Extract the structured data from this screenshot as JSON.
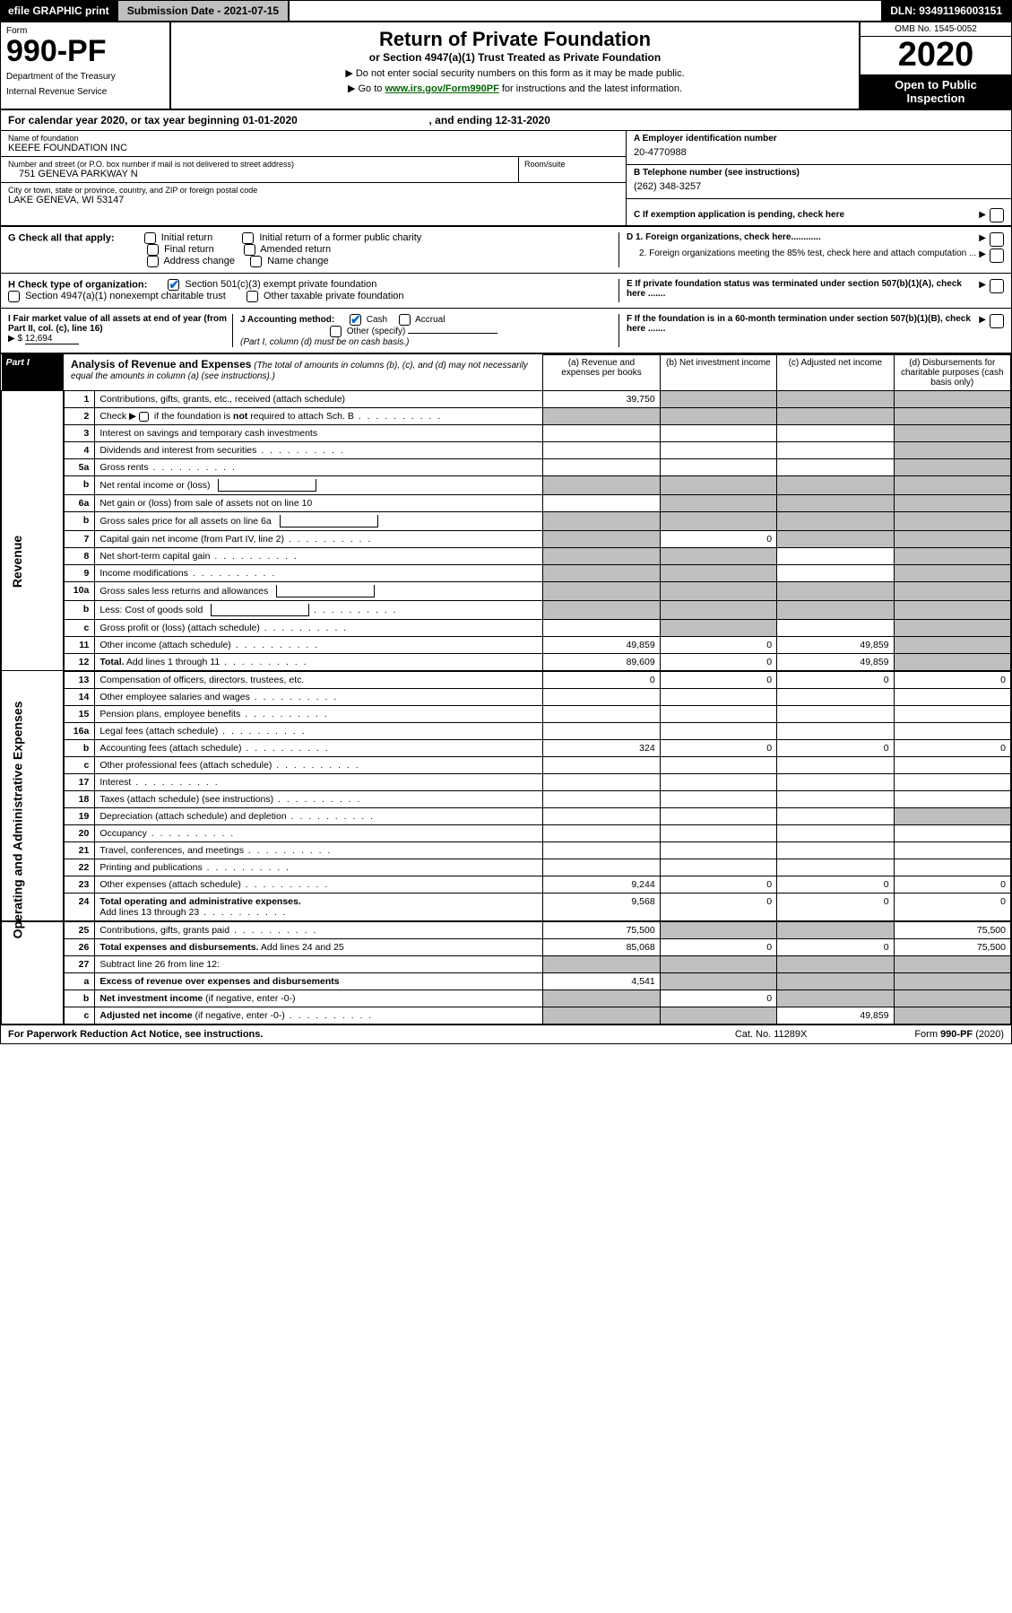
{
  "topbar": {
    "efile": "efile GRAPHIC print",
    "submission_label": "Submission Date - 2021-07-15",
    "dln": "DLN: 93491196003151"
  },
  "title_block": {
    "form_label": "Form",
    "form_number": "990-PF",
    "dept1": "Department of the Treasury",
    "dept2": "Internal Revenue Service",
    "main_title": "Return of Private Foundation",
    "subtitle": "or Section 4947(a)(1) Trust Treated as Private Foundation",
    "note1": "▶ Do not enter social security numbers on this form as it may be made public.",
    "note2_pre": "▶ Go to ",
    "note2_link": "www.irs.gov/Form990PF",
    "note2_post": " for instructions and the latest information.",
    "omb": "OMB No. 1545-0052",
    "year": "2020",
    "open_public": "Open to Public Inspection"
  },
  "cal_year": {
    "text_a": "For calendar year 2020, or tax year beginning 01-01-2020",
    "text_b": ", and ending 12-31-2020"
  },
  "entity": {
    "name_label": "Name of foundation",
    "name": "KEEFE FOUNDATION INC",
    "addr_label": "Number and street (or P.O. box number if mail is not delivered to street address)",
    "addr": "751 GENEVA PARKWAY N",
    "room_label": "Room/suite",
    "city_label": "City or town, state or province, country, and ZIP or foreign postal code",
    "city": "LAKE GENEVA, WI  53147",
    "a_label": "A Employer identification number",
    "a_val": "20-4770988",
    "b_label": "B Telephone number (see instructions)",
    "b_val": "(262) 348-3257",
    "c_label": "C If exemption application is pending, check here"
  },
  "checks": {
    "g_label": "G Check all that apply:",
    "g_items": [
      "Initial return",
      "Initial return of a former public charity",
      "Final return",
      "Amended return",
      "Address change",
      "Name change"
    ],
    "h_label": "H Check type of organization:",
    "h1": "Section 501(c)(3) exempt private foundation",
    "h2": "Section 4947(a)(1) nonexempt charitable trust",
    "h3": "Other taxable private foundation",
    "i_label": "I Fair market value of all assets at end of year (from Part II, col. (c), line 16)",
    "i_val": "12,694",
    "j_label": "J Accounting method:",
    "j1": "Cash",
    "j2": "Accrual",
    "j3": "Other (specify)",
    "j_note": "(Part I, column (d) must be on cash basis.)",
    "d1": "D 1. Foreign organizations, check here............",
    "d2": "2. Foreign organizations meeting the 85% test, check here and attach computation ...",
    "e": "E  If private foundation status was terminated under section 507(b)(1)(A), check here .......",
    "f": "F  If the foundation is in a 60-month termination under section 507(b)(1)(B), check here .......",
    "i_prefix": "▶ $"
  },
  "part1": {
    "tag": "Part I",
    "title": "Analysis of Revenue and Expenses",
    "title_note": " (The total of amounts in columns (b), (c), and (d) may not necessarily equal the amounts in column (a) (see instructions).)",
    "col_a": "(a)   Revenue and expenses per books",
    "col_b": "(b)   Net investment income",
    "col_c": "(c)   Adjusted net income",
    "col_d": "(d)   Disbursements for charitable purposes (cash basis only)"
  },
  "sides": {
    "revenue": "Revenue",
    "expenses": "Operating and Administrative Expenses"
  },
  "rows": [
    {
      "n": "1",
      "desc": "Contributions, gifts, grants, etc., received (attach schedule)",
      "a": "39,750",
      "b": "",
      "c": "",
      "d": "",
      "shaded": [
        "b",
        "c",
        "d"
      ]
    },
    {
      "n": "2",
      "desc": "Check ▶ ☐ if the foundation is not required to attach Sch. B",
      "a": "",
      "b": "",
      "c": "",
      "d": "",
      "shaded": [
        "a",
        "b",
        "c",
        "d"
      ],
      "dots": true
    },
    {
      "n": "3",
      "desc": "Interest on savings and temporary cash investments",
      "a": "",
      "b": "",
      "c": "",
      "d": "",
      "shaded": [
        "d"
      ]
    },
    {
      "n": "4",
      "desc": "Dividends and interest from securities",
      "a": "",
      "b": "",
      "c": "",
      "d": "",
      "shaded": [
        "d"
      ],
      "dots": true
    },
    {
      "n": "5a",
      "desc": "Gross rents",
      "a": "",
      "b": "",
      "c": "",
      "d": "",
      "shaded": [
        "d"
      ],
      "dots": true
    },
    {
      "n": "b",
      "desc": "Net rental income or (loss)",
      "a": "",
      "b": "",
      "c": "",
      "d": "",
      "shaded": [
        "a",
        "b",
        "c",
        "d"
      ],
      "inline_box": true
    },
    {
      "n": "6a",
      "desc": "Net gain or (loss) from sale of assets not on line 10",
      "a": "",
      "b": "",
      "c": "",
      "d": "",
      "shaded": [
        "b",
        "c",
        "d"
      ]
    },
    {
      "n": "b",
      "desc": "Gross sales price for all assets on line 6a",
      "a": "",
      "b": "",
      "c": "",
      "d": "",
      "shaded": [
        "a",
        "b",
        "c",
        "d"
      ],
      "inline_box": true
    },
    {
      "n": "7",
      "desc": "Capital gain net income (from Part IV, line 2)",
      "a": "",
      "b": "0",
      "c": "",
      "d": "",
      "shaded": [
        "a",
        "c",
        "d"
      ],
      "dots": true
    },
    {
      "n": "8",
      "desc": "Net short-term capital gain",
      "a": "",
      "b": "",
      "c": "",
      "d": "",
      "shaded": [
        "a",
        "b",
        "d"
      ],
      "dots": true
    },
    {
      "n": "9",
      "desc": "Income modifications",
      "a": "",
      "b": "",
      "c": "",
      "d": "",
      "shaded": [
        "a",
        "b",
        "d"
      ],
      "dots": true
    },
    {
      "n": "10a",
      "desc": "Gross sales less returns and allowances",
      "a": "",
      "b": "",
      "c": "",
      "d": "",
      "shaded": [
        "a",
        "b",
        "c",
        "d"
      ],
      "inline_box": true
    },
    {
      "n": "b",
      "desc": "Less: Cost of goods sold",
      "a": "",
      "b": "",
      "c": "",
      "d": "",
      "shaded": [
        "a",
        "b",
        "c",
        "d"
      ],
      "inline_box": true,
      "dots": true
    },
    {
      "n": "c",
      "desc": "Gross profit or (loss) (attach schedule)",
      "a": "",
      "b": "",
      "c": "",
      "d": "",
      "shaded": [
        "b",
        "d"
      ],
      "dots": true
    },
    {
      "n": "11",
      "desc": "Other income (attach schedule)",
      "a": "49,859",
      "b": "0",
      "c": "49,859",
      "d": "",
      "shaded": [
        "d"
      ],
      "dots": true
    },
    {
      "n": "12",
      "desc": "Total. Add lines 1 through 11",
      "a": "89,609",
      "b": "0",
      "c": "49,859",
      "d": "",
      "shaded": [
        "d"
      ],
      "bold": true,
      "dots": true
    },
    {
      "n": "13",
      "desc": "Compensation of officers, directors, trustees, etc.",
      "a": "0",
      "b": "0",
      "c": "0",
      "d": "0"
    },
    {
      "n": "14",
      "desc": "Other employee salaries and wages",
      "a": "",
      "b": "",
      "c": "",
      "d": "",
      "dots": true
    },
    {
      "n": "15",
      "desc": "Pension plans, employee benefits",
      "a": "",
      "b": "",
      "c": "",
      "d": "",
      "dots": true
    },
    {
      "n": "16a",
      "desc": "Legal fees (attach schedule)",
      "a": "",
      "b": "",
      "c": "",
      "d": "",
      "dots": true
    },
    {
      "n": "b",
      "desc": "Accounting fees (attach schedule)",
      "a": "324",
      "b": "0",
      "c": "0",
      "d": "0",
      "dots": true
    },
    {
      "n": "c",
      "desc": "Other professional fees (attach schedule)",
      "a": "",
      "b": "",
      "c": "",
      "d": "",
      "dots": true
    },
    {
      "n": "17",
      "desc": "Interest",
      "a": "",
      "b": "",
      "c": "",
      "d": "",
      "dots": true
    },
    {
      "n": "18",
      "desc": "Taxes (attach schedule) (see instructions)",
      "a": "",
      "b": "",
      "c": "",
      "d": "",
      "dots": true
    },
    {
      "n": "19",
      "desc": "Depreciation (attach schedule) and depletion",
      "a": "",
      "b": "",
      "c": "",
      "d": "",
      "shaded": [
        "d"
      ],
      "dots": true
    },
    {
      "n": "20",
      "desc": "Occupancy",
      "a": "",
      "b": "",
      "c": "",
      "d": "",
      "dots": true
    },
    {
      "n": "21",
      "desc": "Travel, conferences, and meetings",
      "a": "",
      "b": "",
      "c": "",
      "d": "",
      "dots": true
    },
    {
      "n": "22",
      "desc": "Printing and publications",
      "a": "",
      "b": "",
      "c": "",
      "d": "",
      "dots": true
    },
    {
      "n": "23",
      "desc": "Other expenses (attach schedule)",
      "a": "9,244",
      "b": "0",
      "c": "0",
      "d": "0",
      "dots": true
    },
    {
      "n": "24",
      "desc": "Total operating and administrative expenses. Add lines 13 through 23",
      "a": "9,568",
      "b": "0",
      "c": "0",
      "d": "0",
      "bold": true,
      "dots": true,
      "two_line": true
    },
    {
      "n": "25",
      "desc": "Contributions, gifts, grants paid",
      "a": "75,500",
      "b": "",
      "c": "",
      "d": "75,500",
      "shaded": [
        "b",
        "c"
      ],
      "dots": true
    },
    {
      "n": "26",
      "desc": "Total expenses and disbursements. Add lines 24 and 25",
      "a": "85,068",
      "b": "0",
      "c": "0",
      "d": "75,500",
      "bold": true
    },
    {
      "n": "27",
      "desc": "Subtract line 26 from line 12:",
      "a": "",
      "b": "",
      "c": "",
      "d": "",
      "shaded": [
        "a",
        "b",
        "c",
        "d"
      ]
    },
    {
      "n": "a",
      "desc": "Excess of revenue over expenses and disbursements",
      "a": "4,541",
      "b": "",
      "c": "",
      "d": "",
      "shaded": [
        "b",
        "c",
        "d"
      ],
      "bold": true
    },
    {
      "n": "b",
      "desc": "Net investment income (if negative, enter -0-)",
      "a": "",
      "b": "0",
      "c": "",
      "d": "",
      "shaded": [
        "a",
        "c",
        "d"
      ],
      "bold": true
    },
    {
      "n": "c",
      "desc": "Adjusted net income (if negative, enter -0-)",
      "a": "",
      "b": "",
      "c": "49,859",
      "d": "",
      "shaded": [
        "a",
        "b",
        "d"
      ],
      "bold": true,
      "dots": true
    }
  ],
  "footer": {
    "left": "For Paperwork Reduction Act Notice, see instructions.",
    "mid": "Cat. No. 11289X",
    "right": "Form 990-PF (2020)"
  }
}
